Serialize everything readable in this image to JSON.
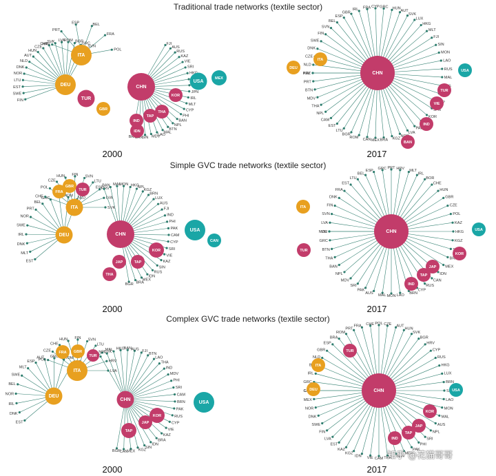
{
  "colors": {
    "asia": "#c23c6a",
    "europe": "#e8a020",
    "america": "#1aa6a6",
    "edge": "#2e7d6e",
    "heavy_edge": "#2a6f8a"
  },
  "rows": [
    {
      "title": "Traditional trade networks (textile sector)"
    },
    {
      "title": "Simple GVC trade networks (textile sector)"
    },
    {
      "title": "Complex GVC trade networks (textile sector)"
    }
  ],
  "years": {
    "left": "2000",
    "right": "2017"
  },
  "networks": [
    {
      "year": "2000",
      "hubs": [
        {
          "id": "CHN",
          "label": "CHN",
          "region": "asia",
          "size": 3
        },
        {
          "id": "DEU",
          "label": "DEU",
          "region": "europe",
          "size": 2
        },
        {
          "id": "ITA",
          "label": "ITA",
          "region": "europe",
          "size": 2
        },
        {
          "id": "USA",
          "label": "USA",
          "region": "america",
          "size": 1.5
        },
        {
          "id": "TUR",
          "label": "TUR",
          "region": "asia",
          "size": 1.5
        },
        {
          "id": "MEX",
          "label": "MEX",
          "region": "america",
          "size": 1.2
        },
        {
          "id": "KOR",
          "label": "KOR",
          "region": "asia",
          "size": 1
        },
        {
          "id": "GBR",
          "label": "GBR",
          "region": "europe",
          "size": 1
        },
        {
          "id": "TAP",
          "label": "TAP",
          "region": "asia",
          "size": 1
        },
        {
          "id": "THA",
          "label": "THA",
          "region": "asia",
          "size": 1
        },
        {
          "id": "IND",
          "label": "IND",
          "region": "asia",
          "size": 1
        },
        {
          "id": "IDN",
          "label": "IDN",
          "region": "asia",
          "size": 1
        }
      ],
      "leaves": [
        "FIN",
        "SWE",
        "EST",
        "LTU",
        "NOR",
        "DNK",
        "NLD",
        "AUT",
        "HUN",
        "CZE",
        "CHE",
        "SVK",
        "LVA",
        "ROM",
        "BGR",
        "GRC",
        "SVN",
        "HRV",
        "PRT",
        "ESP",
        "BEL",
        "FRA",
        "POL",
        "FJI",
        "AUS",
        "RUS",
        "KAZ",
        "VIE",
        "SRI",
        "HKG",
        "KGZ",
        "PAK",
        "JPN",
        "IRL",
        "MLT",
        "CYP",
        "PHI",
        "BAN",
        "NPL",
        "BTN",
        "MAL",
        "LAO",
        "MDV",
        "SIN",
        "CAN",
        "BRA"
      ]
    },
    {
      "year": "2017",
      "hubs": [
        {
          "id": "CHN",
          "label": "CHN",
          "region": "asia",
          "size": 4
        },
        {
          "id": "USA",
          "label": "USA",
          "region": "america",
          "size": 1
        },
        {
          "id": "ITA",
          "label": "ITA",
          "region": "europe",
          "size": 1
        },
        {
          "id": "DEU",
          "label": "DEU",
          "region": "europe",
          "size": 1
        },
        {
          "id": "TUR",
          "label": "TUR",
          "region": "asia",
          "size": 1
        },
        {
          "id": "VIE",
          "label": "VIE",
          "region": "asia",
          "size": 1
        },
        {
          "id": "IND",
          "label": "IND",
          "region": "asia",
          "size": 1
        },
        {
          "id": "BAN",
          "label": "BAN",
          "region": "asia",
          "size": 1
        }
      ],
      "leaves": [
        "POL",
        "NLD",
        "CZE",
        "DNK",
        "SWE",
        "FIN",
        "SVN",
        "BEL",
        "ESP",
        "GBR",
        "IRL",
        "FRA",
        "CYP",
        "GRC",
        "HUN",
        "AUT",
        "SVK",
        "LUX",
        "HKG",
        "MLT",
        "FJI",
        "SIN",
        "MON",
        "LAO",
        "RUS",
        "MAL",
        "AUS",
        "PHI",
        "TAP",
        "JPN",
        "KOR",
        "BRN",
        "PAK",
        "LVA",
        "NOR",
        "KGZ",
        "BRA",
        "MEX",
        "CAN",
        "ROM",
        "BGR",
        "LTU",
        "EST",
        "CAM",
        "NPL",
        "THA",
        "MDV",
        "BTN",
        "PRT",
        "KAZ"
      ]
    },
    {
      "year": "2000",
      "hubs": [
        {
          "id": "CHN",
          "label": "CHN",
          "region": "asia",
          "size": 3
        },
        {
          "id": "USA",
          "label": "USA",
          "region": "america",
          "size": 2
        },
        {
          "id": "DEU",
          "label": "DEU",
          "region": "europe",
          "size": 1.5
        },
        {
          "id": "ITA",
          "label": "ITA",
          "region": "europe",
          "size": 1.5
        },
        {
          "id": "KOR",
          "label": "KOR",
          "region": "asia",
          "size": 1.2
        },
        {
          "id": "CAN",
          "label": "CAN",
          "region": "america",
          "size": 1
        },
        {
          "id": "JAP",
          "label": "JAP",
          "region": "asia",
          "size": 1
        },
        {
          "id": "TAP",
          "label": "TAP",
          "region": "asia",
          "size": 1
        },
        {
          "id": "GBR",
          "label": "GBR",
          "region": "europe",
          "size": 1
        },
        {
          "id": "THA",
          "label": "THA",
          "region": "asia",
          "size": 1
        },
        {
          "id": "FRA",
          "label": "FRA",
          "region": "europe",
          "size": 1
        },
        {
          "id": "TUR",
          "label": "TUR",
          "region": "asia",
          "size": 1
        }
      ],
      "leaves": [
        "EST",
        "MLT",
        "DNK",
        "IRL",
        "SWE",
        "NOR",
        "PRT",
        "BEL",
        "GRC",
        "AUT",
        "ROM",
        "NLD",
        "CHE",
        "POL",
        "CZE",
        "HUN",
        "FIN",
        "SVN",
        "LTU",
        "HRV",
        "LVA",
        "SVK",
        "ESP",
        "BAN",
        "MAL",
        "MON",
        "HKG",
        "NPL",
        "KGZ",
        "BRN",
        "LUX",
        "AUS",
        "FJI",
        "IND",
        "PHI",
        "PAK",
        "CAM",
        "CYP",
        "SRI",
        "VIE",
        "KAZ",
        "SIN",
        "RUS",
        "IDN",
        "MEX",
        "BRA",
        "BGR"
      ]
    },
    {
      "year": "2017",
      "hubs": [
        {
          "id": "CHN",
          "label": "CHN",
          "region": "asia",
          "size": 4
        },
        {
          "id": "USA",
          "label": "USA",
          "region": "america",
          "size": 1
        },
        {
          "id": "ITA",
          "label": "ITA",
          "region": "europe",
          "size": 1
        },
        {
          "id": "KOR",
          "label": "KOR",
          "region": "asia",
          "size": 1
        },
        {
          "id": "JAP",
          "label": "JAP",
          "region": "asia",
          "size": 1
        },
        {
          "id": "TAP",
          "label": "TAP",
          "region": "asia",
          "size": 1
        },
        {
          "id": "IND",
          "label": "IND",
          "region": "asia",
          "size": 1
        },
        {
          "id": "TUR",
          "label": "TUR",
          "region": "asia",
          "size": 1
        }
      ],
      "leaves": [
        "NOR",
        "LVA",
        "SVN",
        "FIN",
        "DNK",
        "FRA",
        "EST",
        "LTU",
        "BEL",
        "ESP",
        "GRC",
        "PRT",
        "HRV",
        "MLT",
        "IRL",
        "BOR",
        "CHE",
        "HUN",
        "GBR",
        "CZE",
        "POL",
        "KAZ",
        "HKG",
        "KGZ",
        "SIN",
        "BRA",
        "MEX",
        "IDN",
        "CAN",
        "RUS",
        "CYP",
        "BRN",
        "LAO",
        "MON",
        "MAL",
        "AUS",
        "PAK",
        "SRI",
        "MDV",
        "NPL",
        "BAN",
        "THA",
        "BTN",
        "GRC",
        "VIE"
      ]
    },
    {
      "year": "2000",
      "hubs": [
        {
          "id": "ITA",
          "label": "ITA",
          "region": "europe",
          "size": 2
        },
        {
          "id": "DEU",
          "label": "DEU",
          "region": "europe",
          "size": 1.5
        },
        {
          "id": "USA",
          "label": "USA",
          "region": "america",
          "size": 2
        },
        {
          "id": "CHN",
          "label": "CHN",
          "region": "asia",
          "size": 1.5
        },
        {
          "id": "KOR",
          "label": "KOR",
          "region": "asia",
          "size": 1.2
        },
        {
          "id": "TAP",
          "label": "TAP",
          "region": "asia",
          "size": 1.2
        },
        {
          "id": "JAP",
          "label": "JAP",
          "region": "asia",
          "size": 1
        },
        {
          "id": "GBR",
          "label": "GBR",
          "region": "europe",
          "size": 1
        },
        {
          "id": "FRA",
          "label": "FRA",
          "region": "europe",
          "size": 1
        },
        {
          "id": "TUR",
          "label": "TUR",
          "region": "asia",
          "size": 0.8
        }
      ],
      "leaves": [
        "EST",
        "DNK",
        "IRL",
        "NOR",
        "BEL",
        "SWE",
        "MLT",
        "ESP",
        "AUT",
        "GRC",
        "ROM",
        "NLD",
        "POL",
        "CZE",
        "CHE",
        "HUN",
        "FIN",
        "SVN",
        "LTU",
        "SVK",
        "HRV",
        "LVA",
        "MON",
        "NPL",
        "MAL",
        "HKG",
        "BAN",
        "AUS",
        "FJI",
        "BTN",
        "LAO",
        "THA",
        "IND",
        "MDV",
        "PHI",
        "SRI",
        "CAM",
        "BRN",
        "PAK",
        "RUS",
        "CYP",
        "VIE",
        "KAZ",
        "BRA",
        "IDN",
        "SIN",
        "KGZ",
        "MEX",
        "CAN",
        "BGR"
      ]
    },
    {
      "year": "2017",
      "hubs": [
        {
          "id": "CHN",
          "label": "CHN",
          "region": "asia",
          "size": 4
        },
        {
          "id": "ITA",
          "label": "ITA",
          "region": "europe",
          "size": 1
        },
        {
          "id": "DEU",
          "label": "DEU",
          "region": "europe",
          "size": 1
        },
        {
          "id": "TUR",
          "label": "TUR",
          "region": "asia",
          "size": 1
        },
        {
          "id": "KOR",
          "label": "KOR",
          "region": "asia",
          "size": 1
        },
        {
          "id": "USA",
          "label": "USA",
          "region": "america",
          "size": 1
        },
        {
          "id": "JAP",
          "label": "JAP",
          "region": "asia",
          "size": 1
        },
        {
          "id": "TAP",
          "label": "TAP",
          "region": "asia",
          "size": 1
        },
        {
          "id": "IND",
          "label": "IND",
          "region": "asia",
          "size": 1
        }
      ],
      "leaves": [
        "LTU",
        "GRC",
        "IRL",
        "BEL",
        "NLD",
        "GBR",
        "ESP",
        "BRA",
        "ROM",
        "PRT",
        "FRA",
        "CHE",
        "POL",
        "CZE",
        "AUT",
        "HUN",
        "SVK",
        "BGR",
        "HRV",
        "CYP",
        "RUS",
        "HKG",
        "LUX",
        "BRN",
        "SIN",
        "LAO",
        "MON",
        "MAL",
        "AUS",
        "NPL",
        "SRI",
        "PHI",
        "PAK",
        "MDV",
        "BAN",
        "THA",
        "CAM",
        "VIE",
        "IDN",
        "KGZ",
        "KAZ",
        "EST",
        "LVA",
        "FIN",
        "SWE",
        "DNK",
        "NOR",
        "MEX",
        "CAN"
      ]
    }
  ],
  "watermark": "知乎 @花猫哥哥"
}
